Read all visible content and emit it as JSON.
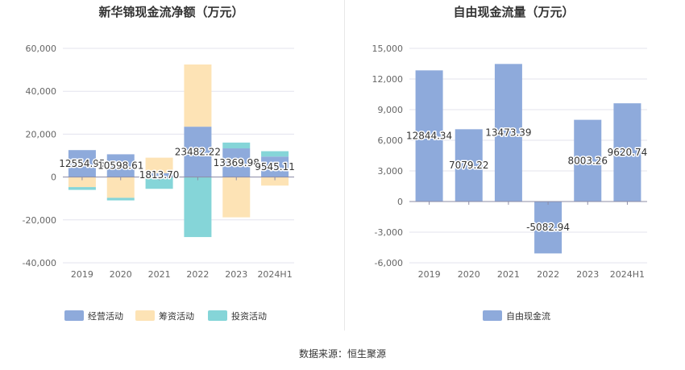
{
  "left_title": "新华锦现金流净额（万元）",
  "right_title": "自由现金流量（万元）",
  "source": "数据来源：恒生聚源",
  "chart_data": [
    {
      "type": "bar",
      "stacked": true,
      "title": "新华锦现金流净额（万元）",
      "categories": [
        "2019",
        "2020",
        "2021",
        "2022",
        "2023",
        "2024H1"
      ],
      "ylim": [
        -40000,
        60000
      ],
      "yticks": [
        -40000,
        -20000,
        0,
        20000,
        40000,
        60000
      ],
      "ytick_labels": [
        "-40,000",
        "-20,000",
        "0",
        "20,000",
        "40,000",
        "60,000"
      ],
      "grid": true,
      "legend_position": "bottom",
      "series": [
        {
          "name": "经营活动",
          "color": "#8eaadb",
          "values": [
            12554.95,
            10598.61,
            1813.7,
            23482.22,
            13369.98,
            9545.11
          ],
          "labels": [
            "12554.95",
            "10598.61",
            "1813.70",
            "23482.22",
            "13369.98",
            "9545.11"
          ]
        },
        {
          "name": "筹资活动",
          "color": "#fde3b5",
          "values": [
            -4700,
            -9700,
            7200,
            29000,
            -18800,
            -4000
          ]
        },
        {
          "name": "投资活动",
          "color": "#85d5d8",
          "values": [
            -1300,
            -1200,
            -5500,
            -28000,
            2700,
            2500
          ]
        }
      ]
    },
    {
      "type": "bar",
      "title": "自由现金流量（万元）",
      "categories": [
        "2019",
        "2020",
        "2021",
        "2022",
        "2023",
        "2024H1"
      ],
      "ylim": [
        -6000,
        15000
      ],
      "yticks": [
        -6000,
        -3000,
        0,
        3000,
        6000,
        9000,
        12000,
        15000
      ],
      "ytick_labels": [
        "-6,000",
        "-3,000",
        "0",
        "3,000",
        "6,000",
        "9,000",
        "12,000",
        "15,000"
      ],
      "grid": true,
      "legend_position": "bottom",
      "series": [
        {
          "name": "自由现金流",
          "color": "#8eaadb",
          "values": [
            12844.34,
            7079.22,
            13473.39,
            -5082.94,
            8003.26,
            9620.74
          ],
          "labels": [
            "12844.34",
            "7079.22",
            "13473.39",
            "-5082.94",
            "8003.26",
            "9620.74"
          ]
        }
      ]
    }
  ]
}
